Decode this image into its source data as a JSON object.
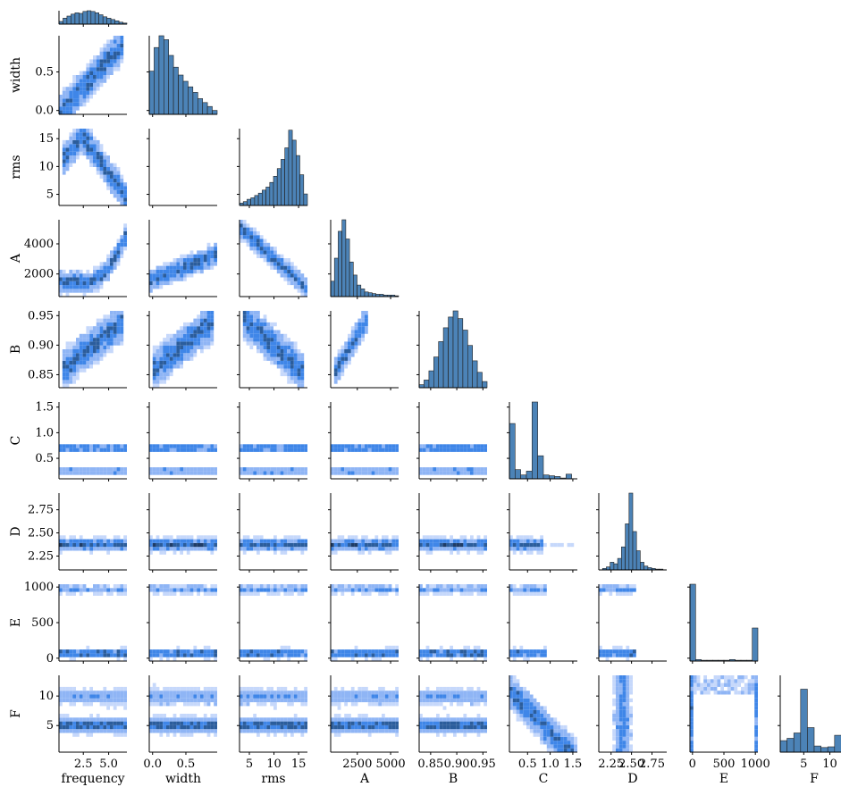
{
  "chart_data": {
    "type": "pairplot-corner",
    "variables": [
      "frequency",
      "width",
      "rms",
      "A",
      "B",
      "C",
      "D",
      "E",
      "F"
    ],
    "axis_labels": [
      "frequency",
      "width",
      "rms",
      "A",
      "B",
      "C",
      "D",
      "E",
      "F"
    ],
    "ranges": {
      "frequency": [
        0.1,
        6.8
      ],
      "width": [
        -0.05,
        0.97
      ],
      "rms": [
        3.0,
        16.8
      ],
      "A": [
        500,
        5600
      ],
      "B": [
        0.828,
        0.958
      ],
      "C": [
        0.1,
        1.6
      ],
      "D": [
        2.1,
        2.93
      ],
      "E": [
        -40,
        1040
      ],
      "F": [
        0.5,
        13.5
      ]
    },
    "ticks": {
      "frequency": [
        {
          "v": 2.5,
          "t": "2.5"
        },
        {
          "v": 5.0,
          "t": "5.0"
        }
      ],
      "width": [
        {
          "v": 0.0,
          "t": "0.0"
        },
        {
          "v": 0.5,
          "t": "0.5"
        }
      ],
      "rms": [
        {
          "v": 5,
          "t": "5"
        },
        {
          "v": 10,
          "t": "10"
        },
        {
          "v": 15,
          "t": "15"
        }
      ],
      "A": [
        {
          "v": 2000,
          "t": "2000"
        },
        {
          "v": 4000,
          "t": "4000"
        }
      ],
      "A_x": [
        {
          "v": 2500,
          "t": "2500"
        },
        {
          "v": 5000,
          "t": "5000"
        }
      ],
      "B": [
        {
          "v": 0.85,
          "t": "0.85"
        },
        {
          "v": 0.9,
          "t": "0.90"
        },
        {
          "v": 0.95,
          "t": "0.95"
        }
      ],
      "C": [
        {
          "v": 0.5,
          "t": "0.5"
        },
        {
          "v": 1.0,
          "t": "1.0"
        },
        {
          "v": 1.5,
          "t": "1.5"
        }
      ],
      "D": [
        {
          "v": 2.25,
          "t": "2.25"
        },
        {
          "v": 2.5,
          "t": "2.50"
        },
        {
          "v": 2.75,
          "t": "2.75"
        }
      ],
      "E": [
        {
          "v": 0,
          "t": "0"
        },
        {
          "v": 500,
          "t": "500"
        },
        {
          "v": 1000,
          "t": "1000"
        }
      ],
      "F": [
        {
          "v": 5,
          "t": "5"
        },
        {
          "v": 10,
          "t": "10"
        }
      ]
    },
    "diagonal_histograms": {
      "frequency": [
        0.2,
        0.45,
        0.6,
        0.75,
        0.85,
        0.8,
        0.95,
        1.0,
        0.95,
        0.85,
        0.7,
        0.55,
        0.45,
        0.35,
        0.25,
        0.15,
        0.08
      ],
      "width": [
        0.55,
        0.85,
        1.0,
        0.95,
        0.75,
        0.6,
        0.5,
        0.42,
        0.35,
        0.28,
        0.2,
        0.15,
        0.1,
        0.05
      ],
      "rms": [
        0.03,
        0.05,
        0.08,
        0.1,
        0.13,
        0.16,
        0.2,
        0.24,
        0.3,
        0.38,
        0.48,
        0.6,
        0.75,
        0.98,
        0.85,
        0.65,
        0.4,
        0.15
      ],
      "A": [
        0.2,
        0.5,
        0.85,
        1.0,
        0.75,
        0.45,
        0.28,
        0.15,
        0.1,
        0.06,
        0.05,
        0.04,
        0.03,
        0.03,
        0.02,
        0.02,
        0.02,
        0.01
      ],
      "B": [
        0.04,
        0.1,
        0.22,
        0.4,
        0.6,
        0.78,
        0.92,
        1.0,
        0.9,
        0.75,
        0.55,
        0.35,
        0.2,
        0.08
      ],
      "C": [
        0.72,
        0.12,
        0.05,
        0.1,
        1.0,
        0.3,
        0.05,
        0.04,
        0.03,
        0.01,
        0.06,
        0.0
      ],
      "D": [
        0.0,
        0.02,
        0.04,
        0.1,
        0.08,
        0.15,
        0.3,
        0.6,
        1.0,
        0.5,
        0.25,
        0.1,
        0.05,
        0.03,
        0.02,
        0.01,
        0.01,
        0.0
      ],
      "E": [
        1.0,
        0.02,
        0.01,
        0.01,
        0.01,
        0.01,
        0.01,
        0.02,
        0.01,
        0.01,
        0.01,
        0.43
      ],
      "F": [
        0.15,
        0.18,
        0.25,
        0.82,
        0.32,
        0.08,
        0.06,
        0.07,
        0.22,
        0.15
      ]
    },
    "histogram_color": "#4c83b7",
    "heatmap_colors": [
      "#c6d8fb",
      "#8fb5f5",
      "#3f86e8",
      "#2b5d9c",
      "#1f3c66"
    ],
    "panel_count": 36,
    "grid": false,
    "legend": "none"
  }
}
